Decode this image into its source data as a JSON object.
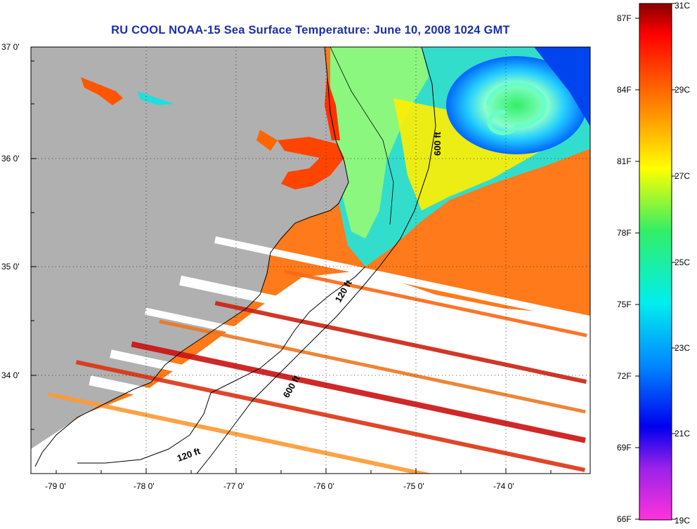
{
  "title": "RU COOL  NOAA-15  Sea Surface Temperature:  June 10, 2008 1024 GMT",
  "map": {
    "lon_labels": [
      "-79 0'",
      "-78 0'",
      "-77 0'",
      "-76 0'",
      "-75 0'",
      "-74 0'"
    ],
    "lat_labels": [
      "37 0'",
      "36 0'",
      "35 0'",
      "34 0'"
    ],
    "contour_labels": [
      "600 ft",
      "120 ft",
      "600 ft",
      "120 ft"
    ],
    "land_color": "#b0b0b0",
    "cloud_color": "#ffffff"
  },
  "colorbar": {
    "fahrenheit_labels": [
      "87F",
      "84F",
      "81F",
      "78F",
      "75F",
      "72F",
      "69F",
      "66F"
    ],
    "celsius_labels": [
      "31C",
      "29C",
      "27C",
      "25C",
      "23C",
      "21C",
      "19C"
    ],
    "colors": [
      "#ff33dd",
      "#9a22e8",
      "#0000ee",
      "#0088ff",
      "#00eeee",
      "#33ee66",
      "#ffff00",
      "#ff9900",
      "#ff4400",
      "#ff0000",
      "#880000"
    ]
  }
}
